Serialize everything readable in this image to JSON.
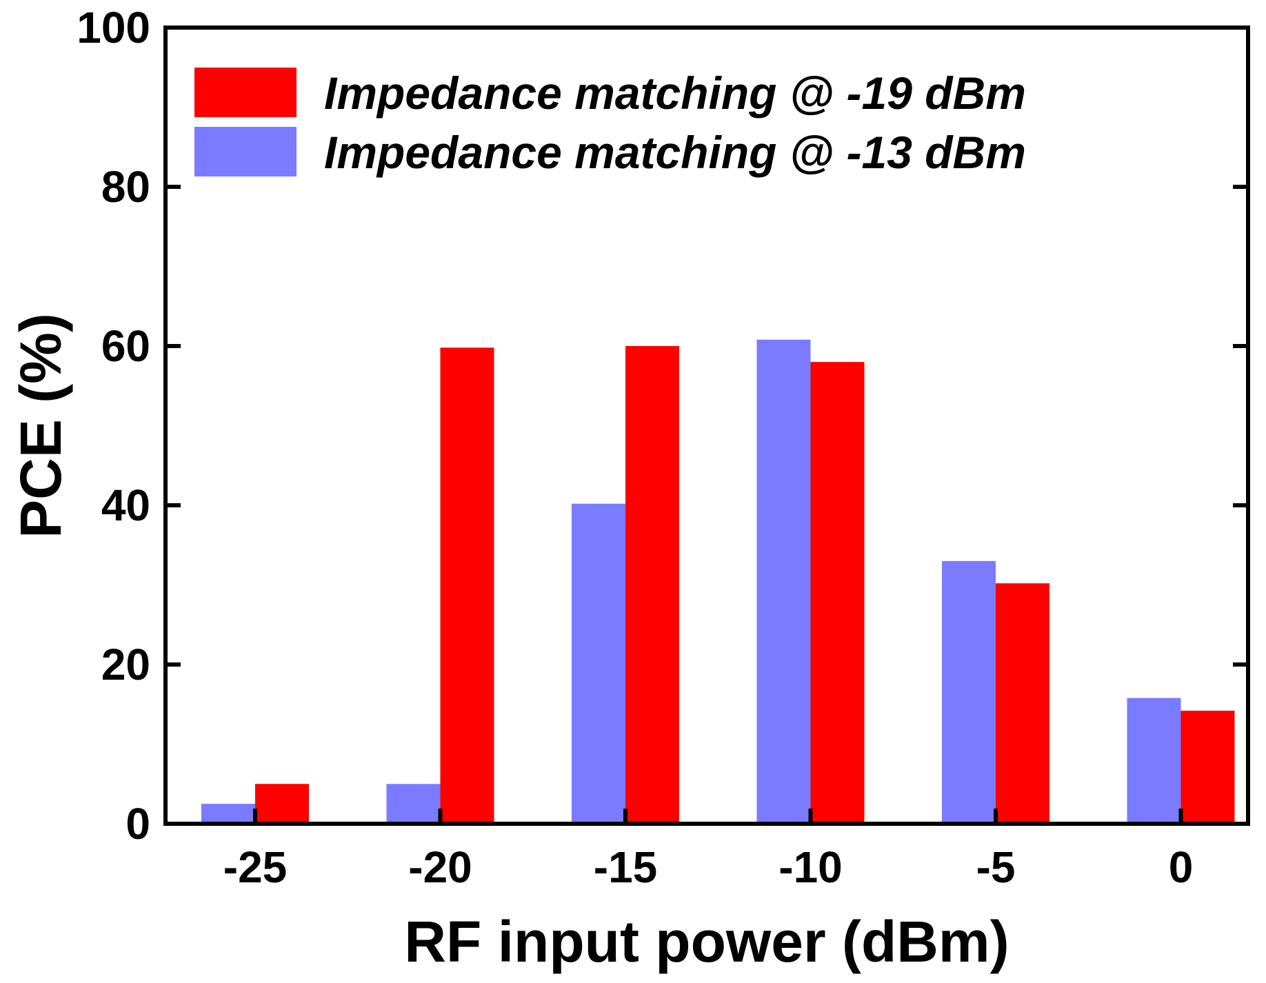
{
  "chart_data": {
    "type": "bar",
    "xlabel": "RF input power  (dBm)",
    "ylabel": "PCE  (%)",
    "ylim": [
      0,
      100
    ],
    "yticks": [
      0,
      20,
      40,
      60,
      80,
      100
    ],
    "categories": [
      "-25",
      "-20",
      "-15",
      "-10",
      "-5",
      "0"
    ],
    "legend_position": "top-left",
    "grid": false,
    "series": [
      {
        "name": "Impedance matching @ -13 dBm",
        "color": "#7b7bff",
        "values": [
          2.5,
          5,
          40.2,
          60.8,
          33,
          15.8
        ]
      },
      {
        "name": "Impedance matching @ -19 dBm",
        "color": "#ff0000",
        "values": [
          5,
          59.8,
          60,
          58,
          30.2,
          14.2
        ]
      }
    ],
    "legend_order": [
      1,
      0
    ]
  }
}
